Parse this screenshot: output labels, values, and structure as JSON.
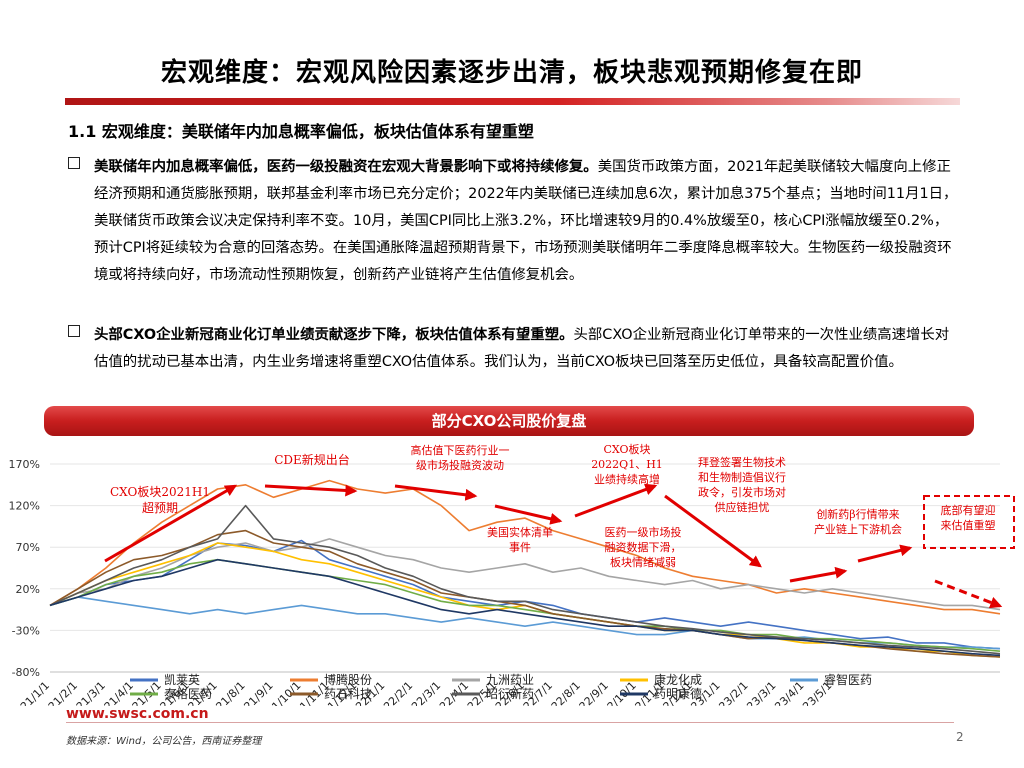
{
  "header": {
    "title": "宏观维度：宏观风险因素逐步出清，板块悲观预期修复在即",
    "subheading": "1.1 宏观维度：美联储年内加息概率偏低，板块估值体系有望重塑"
  },
  "bullets": [
    {
      "lead": "美联储年内加息概率偏低，医药一级投融资在宏观大背景影响下或将持续修复。",
      "body": "美国货币政策方面，2021年起美联储较大幅度向上修正经济预期和通货膨胀预期，联邦基金利率市场已充分定价；2022年内美联储已连续加息6次，累计加息375个基点；当地时间11月1日，美联储货币政策会议决定保持利率不变。10月，美国CPI同比上涨3.2%，环比增速较9月的0.4%放缓至0，核心CPI涨幅放缓至0.2%，预计CPI将延续较为合意的回落态势。在美国通胀降温超预期背景下，市场预测美联储明年二季度降息概率较大。生物医药一级投融资环境或将持续向好，市场流动性预期恢复，创新药产业链将产生估值修复机会。"
    },
    {
      "lead": "头部CXO企业新冠商业化订单业绩贡献逐步下降，板块估值体系有望重塑。",
      "body": "头部CXO企业新冠商业化订单带来的一次性业绩高速增长对估值的扰动已基本出清，内生业务增速将重塑CXO估值体系。我们认为，当前CXO板块已回落至历史低位，具备较高配置价值。"
    }
  ],
  "chart_title": "部分CXO公司股价复盘",
  "chart_data": {
    "type": "line",
    "yticks": [
      "170%",
      "120%",
      "70%",
      "20%",
      "-30%",
      "-80%"
    ],
    "ylim": [
      -80,
      170
    ],
    "x": [
      "2021/1/1",
      "2021/2/1",
      "2021/3/1",
      "2021/4/1",
      "2021/5/1",
      "2021/6/1",
      "2021/7/1",
      "2021/8/1",
      "2021/9/1",
      "2021/10/1",
      "2021/11/1",
      "2021/12/1",
      "2022/1/1",
      "2022/2/1",
      "2022/3/1",
      "2022/4/1",
      "2022/5/1",
      "2022/6/1",
      "2022/7/1",
      "2022/8/1",
      "2022/9/1",
      "2022/10/1",
      "2022/11/1",
      "2022/12/1",
      "2023/1/1",
      "2023/2/1",
      "2023/3/1",
      "2023/4/1",
      "2023/5/1",
      "2023/6/1",
      "2023/7/1",
      "2023/8/1",
      "2023/9/1",
      "2023/10/1",
      "2023/11/1"
    ],
    "xticks": [
      "2021/1/1",
      "2021/2/1",
      "2021/3/1",
      "2021/4/1",
      "2021/5/1",
      "2021/6/1",
      "2021/7/1",
      "2021/8/1",
      "2021/9/1",
      "2021/10/1",
      "2021/11/1",
      "2021/12/1",
      "2022/1/1",
      "2022/2/1",
      "2022/3/1",
      "2022/4/1",
      "2022/5/1",
      "2022/6/1",
      "2022/7/1",
      "2022/8/1",
      "2022/9/1",
      "2022/10/1",
      "2022/11/1",
      "2022/12/1",
      "2023/1/1",
      "2023/2/1",
      "2023/3/1",
      "2023/4/1",
      "2023/5/1"
    ],
    "series": [
      {
        "name": "凯莱英",
        "color": "#4472c4",
        "values": [
          0,
          10,
          25,
          30,
          35,
          55,
          75,
          72,
          65,
          78,
          55,
          45,
          35,
          25,
          10,
          5,
          0,
          5,
          0,
          -10,
          -15,
          -20,
          -15,
          -20,
          -25,
          -20,
          -25,
          -30,
          -35,
          -40,
          -38,
          -45,
          -45,
          -50,
          -52
        ]
      },
      {
        "name": "博腾股份",
        "color": "#ed7d31",
        "values": [
          0,
          20,
          45,
          75,
          100,
          120,
          140,
          145,
          130,
          140,
          150,
          140,
          135,
          140,
          120,
          90,
          100,
          105,
          90,
          80,
          70,
          60,
          45,
          35,
          30,
          25,
          15,
          20,
          15,
          10,
          5,
          0,
          -5,
          -5,
          -10
        ]
      },
      {
        "name": "九洲药业",
        "color": "#a5a5a5",
        "values": [
          0,
          15,
          20,
          35,
          45,
          60,
          70,
          75,
          65,
          70,
          80,
          70,
          60,
          55,
          45,
          40,
          45,
          50,
          40,
          45,
          35,
          30,
          25,
          30,
          20,
          25,
          20,
          15,
          20,
          15,
          10,
          5,
          0,
          0,
          -5
        ]
      },
      {
        "name": "康龙化成",
        "color": "#ffc000",
        "values": [
          0,
          15,
          30,
          40,
          50,
          60,
          75,
          70,
          65,
          55,
          50,
          40,
          30,
          20,
          10,
          0,
          -5,
          0,
          -10,
          -15,
          -20,
          -25,
          -30,
          -30,
          -35,
          -35,
          -40,
          -45,
          -45,
          -50,
          -50,
          -55,
          -55,
          -60,
          -62
        ]
      },
      {
        "name": "睿智医药",
        "color": "#5b9bd5",
        "values": [
          0,
          10,
          5,
          0,
          -5,
          -10,
          -5,
          -10,
          -5,
          0,
          -5,
          -10,
          -10,
          -15,
          -20,
          -15,
          -20,
          -25,
          -20,
          -25,
          -30,
          -35,
          -35,
          -30,
          -35,
          -40,
          -40,
          -38,
          -42,
          -45,
          -45,
          -48,
          -50,
          -50,
          -52
        ]
      },
      {
        "name": "泰格医药",
        "color": "#70ad47",
        "values": [
          0,
          10,
          25,
          35,
          40,
          50,
          55,
          50,
          45,
          40,
          35,
          30,
          25,
          15,
          5,
          0,
          0,
          -5,
          -10,
          -15,
          -20,
          -25,
          -25,
          -30,
          -30,
          -35,
          -35,
          -40,
          -40,
          -42,
          -45,
          -48,
          -50,
          -52,
          -55
        ]
      },
      {
        "name": "药石科技",
        "color": "#8c5a2a",
        "values": [
          0,
          20,
          40,
          55,
          60,
          70,
          85,
          90,
          75,
          70,
          65,
          50,
          40,
          30,
          15,
          10,
          5,
          0,
          -10,
          -15,
          -20,
          -25,
          -28,
          -30,
          -35,
          -40,
          -38,
          -42,
          -45,
          -48,
          -52,
          -55,
          -58,
          -60,
          -62
        ]
      },
      {
        "name": "昭衍新药",
        "color": "#595959",
        "values": [
          0,
          15,
          30,
          45,
          55,
          70,
          80,
          120,
          80,
          75,
          70,
          60,
          45,
          35,
          20,
          10,
          5,
          5,
          -5,
          -10,
          -15,
          -20,
          -25,
          -28,
          -32,
          -35,
          -38,
          -40,
          -42,
          -45,
          -48,
          -50,
          -52,
          -55,
          -58
        ]
      },
      {
        "name": "药明康德",
        "color": "#1f3864",
        "values": [
          0,
          10,
          20,
          30,
          35,
          45,
          55,
          50,
          45,
          40,
          35,
          25,
          15,
          5,
          -5,
          -10,
          -5,
          -10,
          -15,
          -20,
          -25,
          -25,
          -30,
          -30,
          -35,
          -38,
          -40,
          -42,
          -45,
          -48,
          -50,
          -52,
          -55,
          -58,
          -60
        ]
      }
    ],
    "annotations": [
      {
        "text": "CXO板块2021H1超预期",
        "color": "#e10000"
      },
      {
        "text": "CDE新规出台",
        "color": "#e10000"
      },
      {
        "text": "高估值下医药行业一级市场投融资波动",
        "color": "#e10000"
      },
      {
        "text": "CXO板块2022Q1、H1业绩持续高增",
        "color": "#e10000"
      },
      {
        "text": "美国实体清单事件",
        "color": "#e10000"
      },
      {
        "text": "医药一级市场投融资数据下滑，板块情绪减弱",
        "color": "#e10000"
      },
      {
        "text": "拜登签署生物技术和生物制造倡议行政令，引发市场对供应链担忧",
        "color": "#e10000"
      },
      {
        "text": "创新药β行情带来产业链上下游机会",
        "color": "#e10000"
      },
      {
        "text": "底部有望迎来估值重塑",
        "color": "#e10000"
      }
    ]
  },
  "footer": {
    "url": "www.swsc.com.cn",
    "source": "数据来源：Wind，公司公告，西南证券整理",
    "page": "2"
  }
}
